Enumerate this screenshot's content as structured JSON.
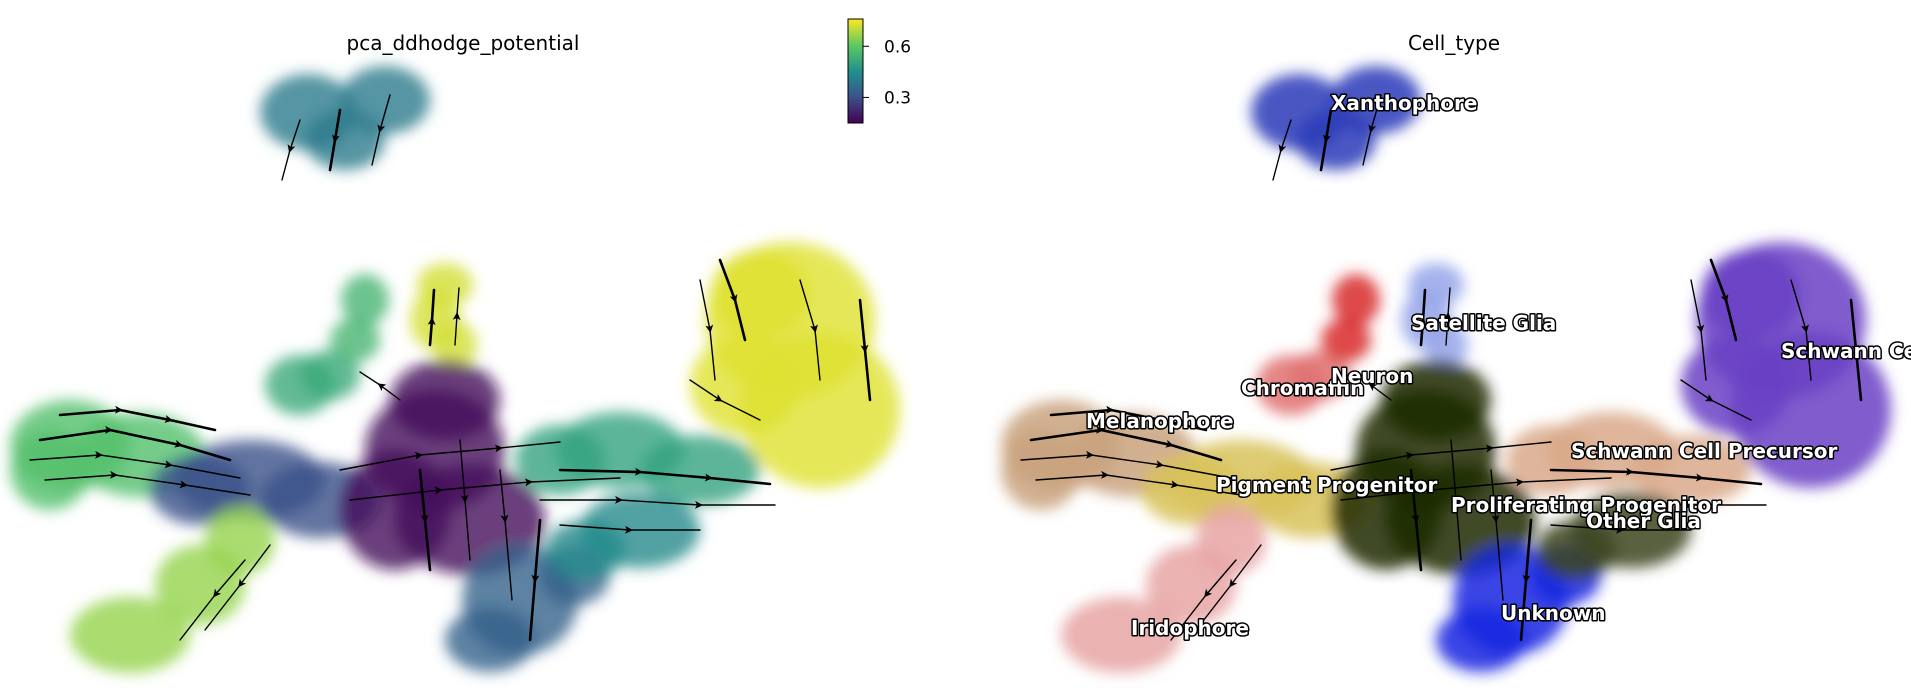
{
  "chart_data": [
    {
      "type": "scatter",
      "subtype": "embedding_with_velocity_streamlines",
      "title": "pca_ddhodge_potential",
      "xlabel": "",
      "ylabel": "",
      "grid": false,
      "colormap": "viridis",
      "colorbar": {
        "ticks": [
          0.6,
          0.3
        ],
        "range": [
          0.15,
          0.76
        ],
        "placement": "top-right"
      },
      "regions": [
        {
          "id": "xanthophore",
          "value": 0.4
        },
        {
          "id": "melanophore",
          "value": 0.58
        },
        {
          "id": "pigment_progenitor",
          "value": 0.3
        },
        {
          "id": "iridophore",
          "value": 0.66
        },
        {
          "id": "chromaffin",
          "value": 0.52
        },
        {
          "id": "neuron",
          "value": 0.55
        },
        {
          "id": "satellite_glia",
          "value": 0.72
        },
        {
          "id": "proliferating_progenitor",
          "value": 0.17
        },
        {
          "id": "unknown",
          "value": 0.34
        },
        {
          "id": "schwann_cell_precursor",
          "value": 0.5
        },
        {
          "id": "other_glia",
          "value": 0.44
        },
        {
          "id": "schwann_cell",
          "value": 0.73
        }
      ]
    },
    {
      "type": "scatter",
      "subtype": "embedding_with_velocity_streamlines",
      "title": "Cell_type",
      "xlabel": "",
      "ylabel": "",
      "grid": false,
      "legend": "on data",
      "categories": [
        {
          "id": "xanthophore",
          "label": "Xanthophore",
          "color": "#2a3bb8"
        },
        {
          "id": "melanophore",
          "label": "Melanophore",
          "color": "#c9a27e"
        },
        {
          "id": "pigment_progenitor",
          "label": "Pigment Progenitor",
          "color": "#d8c25a"
        },
        {
          "id": "iridophore",
          "label": "Iridophore",
          "color": "#e8a4a4"
        },
        {
          "id": "chromaffin",
          "label": "Chromaffin",
          "color": "#e07070"
        },
        {
          "id": "neuron",
          "label": "Neuron",
          "color": "#d82a2a"
        },
        {
          "id": "satellite_glia",
          "label": "Satellite Glia",
          "color": "#95a5ea"
        },
        {
          "id": "proliferating_progenitor",
          "label": "Proliferating Progenitor",
          "color": "#1e2a00"
        },
        {
          "id": "unknown",
          "label": "Unknown",
          "color": "#1526e0"
        },
        {
          "id": "schwann_cell_precursor",
          "label": "Schwann Cell Precursor",
          "color": "#d9a98a"
        },
        {
          "id": "other_glia",
          "label": "Other Glia",
          "color": "#3c4520"
        },
        {
          "id": "schwann_cell",
          "label": "Schwann Cell",
          "color": "#6a40c4"
        }
      ]
    }
  ]
}
